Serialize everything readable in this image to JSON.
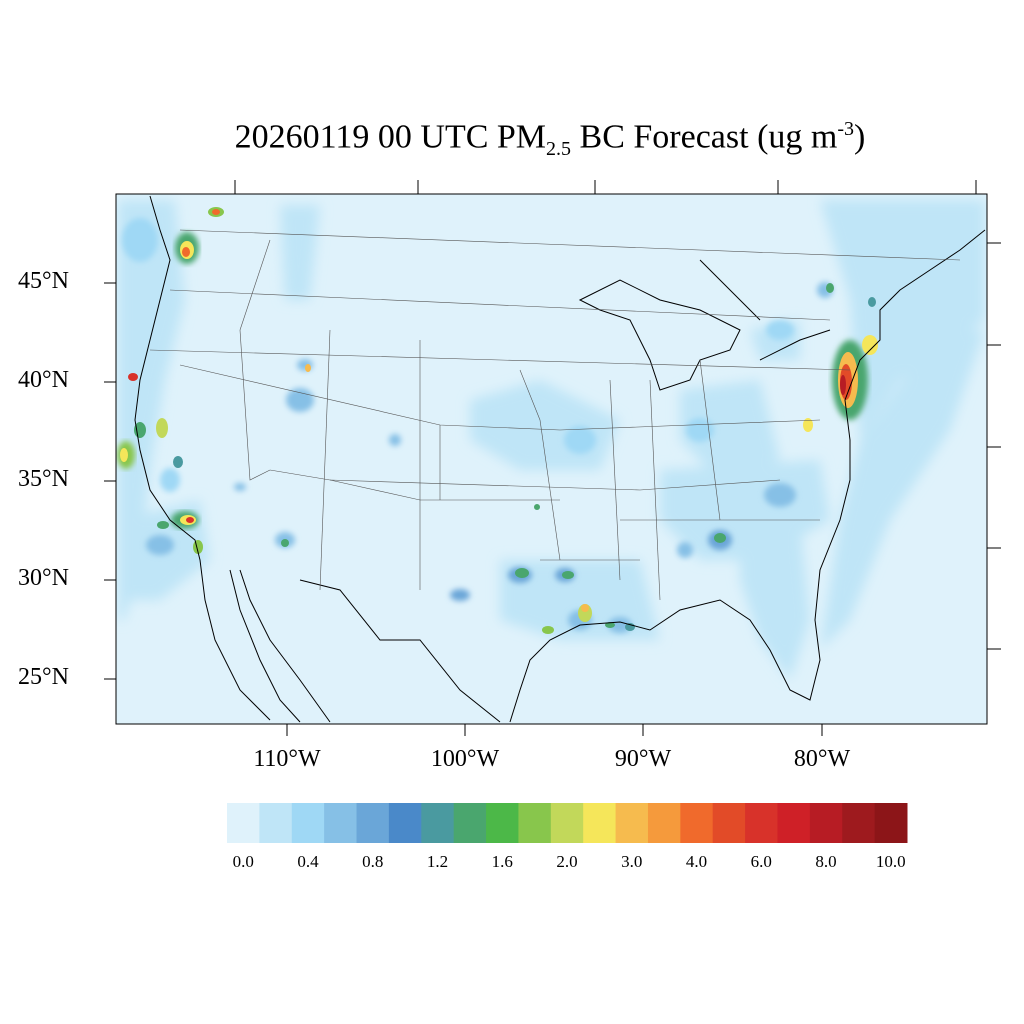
{
  "title": {
    "date": "20260119",
    "hour": "00 UTC",
    "species": "PM",
    "species_sub": "2.5",
    "rest": "BC Forecast (ug m",
    "unit_sup": "-3",
    "close": ")"
  },
  "axes": {
    "lat_labels": [
      "45°N",
      "40°N",
      "35°N",
      "30°N",
      "25°N"
    ],
    "lon_labels": [
      "110°W",
      "100°W",
      "90°W",
      "80°W"
    ]
  },
  "colorbar": {
    "labels": [
      "0.0",
      "0.4",
      "0.8",
      "1.2",
      "1.6",
      "2.0",
      "3.0",
      "4.0",
      "6.0",
      "8.0",
      "10.0"
    ],
    "colors": [
      "#dff2fb",
      "#bfe5f7",
      "#9fd8f5",
      "#86c0e6",
      "#6aa6d8",
      "#4a89c9",
      "#4a9aa0",
      "#4aa66e",
      "#4cb848",
      "#88c64c",
      "#c2d85a",
      "#f5e65a",
      "#f6bb4e",
      "#f59a3c",
      "#f06a2c",
      "#e24b28",
      "#d8322a",
      "#cf2027",
      "#b71c24",
      "#9e1a1e",
      "#8c1518"
    ]
  },
  "map": {
    "background": "#dff2fb",
    "region": "Contiguous United States",
    "variable": "PM2.5 black carbon forecast"
  }
}
